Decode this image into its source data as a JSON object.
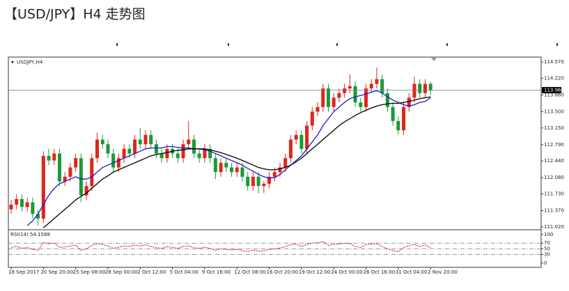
{
  "chart_data": [
    {
      "type": "candlestick",
      "title": "【USD/JPY】H4 走势图",
      "panel_label": "USDJPY,H4",
      "categories": [
        "18 Sep 2017",
        null,
        null,
        null,
        null,
        null,
        "20 Sep 20:00",
        null,
        null,
        null,
        null,
        null,
        "25 Sep 08:00",
        null,
        null,
        null,
        null,
        null,
        "28 Sep 00:00",
        null,
        null,
        null,
        null,
        null,
        "2 Oct 12:00",
        null,
        null,
        null,
        null,
        null,
        "5 Oct 04:00",
        null,
        null,
        null,
        null,
        null,
        "9 Oct 16:00",
        null,
        null,
        null,
        null,
        null,
        "12 Oct 08:00",
        null,
        null,
        null,
        null,
        null,
        "16 Oct 20:00",
        null,
        null,
        null,
        null,
        null,
        "19 Oct 12:00",
        null,
        null,
        null,
        null,
        null,
        "24 Oct 00:00",
        null,
        null,
        null,
        null,
        null,
        "26 Oct 16:00",
        null,
        null,
        null,
        null,
        null,
        "31 Oct 04:00",
        null,
        null,
        null,
        null,
        null,
        "2 Nov 20:00"
      ],
      "open": [
        111.4,
        111.5,
        111.62,
        111.45,
        111.55,
        111.3,
        111.2,
        112.55,
        112.45,
        112.6,
        112.0,
        112.1,
        112.3,
        112.5,
        111.7,
        111.9,
        112.5,
        112.9,
        112.8,
        112.6,
        112.3,
        112.5,
        112.7,
        112.6,
        112.9,
        112.8,
        113.0,
        112.8,
        112.6,
        112.5,
        112.7,
        112.6,
        112.5,
        112.8,
        112.9,
        112.6,
        112.5,
        112.7,
        112.5,
        112.2,
        112.4,
        112.3,
        112.2,
        112.3,
        112.1,
        111.9,
        112.1,
        111.9,
        111.95,
        112.1,
        112.2,
        112.3,
        112.5,
        112.9,
        113.0,
        112.7,
        113.2,
        113.5,
        113.6,
        114.0,
        113.6,
        113.8,
        113.9,
        114.0,
        114.05,
        113.7,
        113.6,
        114.0,
        114.1,
        114.2,
        113.9,
        113.6,
        113.3,
        113.1,
        113.6,
        113.8,
        114.1,
        113.9,
        114.1
      ],
      "high": [
        111.6,
        111.72,
        111.72,
        111.65,
        111.65,
        111.4,
        112.65,
        112.7,
        112.7,
        112.7,
        112.2,
        112.4,
        112.6,
        112.6,
        112.0,
        112.6,
        113.05,
        113.0,
        112.9,
        112.7,
        112.6,
        112.8,
        112.8,
        113.0,
        113.15,
        113.1,
        113.1,
        112.9,
        112.7,
        112.8,
        112.8,
        112.7,
        112.9,
        113.3,
        113.0,
        112.7,
        112.8,
        112.8,
        112.6,
        112.5,
        112.5,
        112.4,
        112.4,
        112.4,
        112.2,
        112.2,
        112.2,
        112.0,
        112.2,
        112.3,
        112.4,
        112.6,
        113.0,
        113.1,
        113.1,
        113.3,
        113.6,
        113.7,
        114.1,
        114.1,
        113.9,
        114.0,
        114.1,
        114.3,
        114.15,
        113.8,
        114.1,
        114.2,
        114.45,
        114.3,
        114.0,
        113.7,
        113.4,
        113.7,
        113.9,
        114.25,
        114.2,
        114.2,
        114.15
      ],
      "low": [
        111.3,
        111.4,
        111.35,
        111.35,
        111.2,
        111.05,
        111.1,
        112.35,
        112.35,
        111.9,
        111.9,
        112.0,
        112.2,
        111.55,
        111.6,
        111.8,
        112.4,
        112.7,
        112.5,
        112.2,
        112.2,
        112.4,
        112.5,
        112.5,
        112.7,
        112.7,
        112.7,
        112.5,
        112.4,
        112.4,
        112.5,
        112.4,
        112.4,
        112.7,
        112.5,
        112.4,
        112.4,
        112.4,
        112.05,
        112.1,
        112.2,
        112.1,
        112.1,
        112.0,
        111.8,
        111.8,
        111.75,
        111.75,
        111.85,
        112.0,
        112.1,
        112.2,
        112.4,
        112.8,
        112.6,
        112.6,
        113.1,
        113.4,
        113.5,
        113.5,
        113.5,
        113.7,
        113.8,
        113.9,
        113.6,
        113.5,
        113.5,
        113.9,
        114.0,
        113.8,
        113.5,
        113.2,
        113.0,
        113.0,
        113.5,
        113.7,
        113.8,
        113.8,
        113.85
      ],
      "close": [
        111.5,
        111.62,
        111.45,
        111.55,
        111.3,
        111.2,
        112.55,
        112.45,
        112.6,
        112.0,
        112.1,
        112.3,
        112.5,
        111.7,
        111.9,
        112.5,
        112.9,
        112.8,
        112.6,
        112.3,
        112.5,
        112.7,
        112.6,
        112.9,
        112.8,
        113.0,
        112.8,
        112.6,
        112.5,
        112.7,
        112.6,
        112.5,
        112.8,
        112.9,
        112.6,
        112.5,
        112.7,
        112.5,
        112.2,
        112.4,
        112.3,
        112.2,
        112.3,
        112.1,
        111.9,
        112.1,
        111.9,
        111.95,
        112.1,
        112.2,
        112.3,
        112.5,
        112.9,
        113.0,
        112.7,
        113.2,
        113.5,
        113.6,
        114.0,
        113.6,
        113.8,
        113.9,
        114.0,
        114.05,
        113.7,
        113.6,
        114.0,
        114.1,
        114.2,
        113.9,
        113.6,
        113.3,
        113.1,
        113.6,
        113.8,
        114.1,
        113.9,
        114.1,
        113.96
      ],
      "up_color": "#e0251b",
      "down_color": "#1a9a3a",
      "series": [
        {
          "color": "#1c1cc8",
          "values": [
            null,
            null,
            null,
            111.05,
            111.15,
            111.3,
            111.5,
            111.7,
            111.85,
            111.95,
            112.0,
            112.05,
            112.1,
            112.05,
            112.05,
            112.1,
            112.2,
            112.3,
            112.35,
            112.4,
            112.45,
            112.5,
            112.55,
            112.6,
            112.65,
            112.7,
            112.72,
            112.72,
            112.72,
            112.75,
            112.75,
            112.73,
            112.72,
            112.72,
            112.7,
            112.7,
            112.68,
            112.65,
            112.6,
            112.55,
            112.5,
            112.45,
            112.4,
            112.35,
            112.28,
            112.22,
            112.15,
            112.1,
            112.07,
            112.08,
            112.15,
            112.25,
            112.35,
            112.45,
            112.55,
            112.7,
            112.85,
            113.0,
            113.2,
            113.35,
            113.5,
            113.6,
            113.7,
            113.78,
            113.82,
            113.85,
            113.88,
            113.92,
            113.95,
            113.9,
            113.82,
            113.75,
            113.7,
            113.65,
            113.62,
            113.65,
            113.7,
            113.72,
            113.8
          ]
        },
        {
          "color": "#000000",
          "values": [
            null,
            null,
            null,
            null,
            null,
            null,
            111.0,
            111.1,
            111.2,
            111.3,
            111.4,
            111.5,
            111.6,
            111.68,
            111.75,
            111.85,
            111.95,
            112.05,
            112.12,
            112.2,
            112.25,
            112.3,
            112.35,
            112.4,
            112.45,
            112.5,
            112.55,
            112.58,
            112.6,
            112.62,
            112.65,
            112.67,
            112.68,
            112.7,
            112.7,
            112.7,
            112.7,
            112.68,
            112.65,
            112.62,
            112.58,
            112.54,
            112.5,
            112.45,
            112.4,
            112.35,
            112.3,
            112.27,
            112.25,
            112.25,
            112.27,
            112.3,
            112.35,
            112.42,
            112.5,
            112.6,
            112.7,
            112.8,
            112.9,
            113.0,
            113.1,
            113.2,
            113.28,
            113.35,
            113.42,
            113.48,
            113.53,
            113.58,
            113.62,
            113.65,
            113.67,
            113.68,
            113.68,
            113.7,
            113.72,
            113.75,
            113.78,
            113.8,
            113.82
          ]
        }
      ],
      "current_price": 113.964,
      "ylim": [
        110.96,
        114.675
      ],
      "yticks": [
        {
          "value": 114.57,
          "label": "114.570"
        },
        {
          "value": 114.22,
          "label": "114.220"
        },
        {
          "value": 113.86,
          "label": "113.860"
        },
        {
          "value": 113.5,
          "label": "113.500"
        },
        {
          "value": 113.15,
          "label": "113.150"
        },
        {
          "value": 112.79,
          "label": "112.790"
        },
        {
          "value": 112.44,
          "label": "112.440"
        },
        {
          "value": 112.08,
          "label": "112.080"
        },
        {
          "value": 111.73,
          "label": "111.730"
        },
        {
          "value": 111.37,
          "label": "111.370"
        },
        {
          "value": 111.02,
          "label": "111.020"
        }
      ]
    },
    {
      "type": "line",
      "panel_label": "RSI(14) 54.1588",
      "color": "#cc2020",
      "values": [
        55,
        58,
        52,
        55,
        48,
        45,
        72,
        68,
        70,
        55,
        57,
        60,
        63,
        45,
        50,
        62,
        68,
        65,
        60,
        52,
        56,
        60,
        58,
        63,
        60,
        64,
        58,
        54,
        52,
        57,
        55,
        52,
        58,
        60,
        54,
        52,
        56,
        51,
        45,
        50,
        48,
        46,
        48,
        44,
        40,
        46,
        42,
        43,
        48,
        50,
        53,
        57,
        65,
        67,
        58,
        66,
        70,
        71,
        76,
        62,
        66,
        67,
        69,
        69,
        58,
        55,
        65,
        67,
        68,
        58,
        50,
        44,
        40,
        55,
        60,
        66,
        58,
        64,
        54.1588
      ],
      "levels": [
        70,
        50,
        30
      ],
      "ylim": [
        -15,
        117
      ],
      "yticks": [
        100,
        70,
        50,
        30,
        0
      ]
    }
  ]
}
